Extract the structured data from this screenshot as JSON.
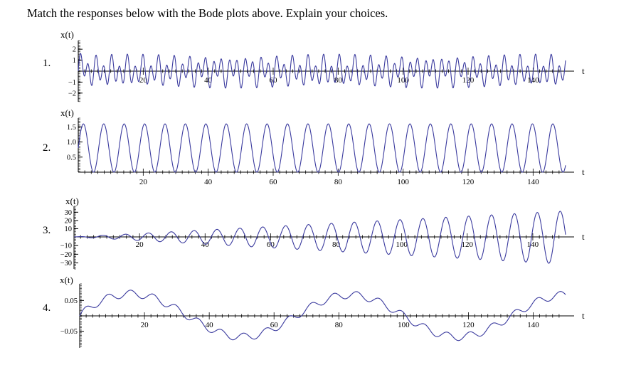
{
  "prompt": "Match the responses below with the Bode plots above. Explain your choices.",
  "colors": {
    "curve": "#3a3a9e",
    "axis": "#000000"
  },
  "chart_data": [
    {
      "type": "line",
      "number": "1.",
      "ylabel": "x(t)",
      "xlabel": "t",
      "xlim": [
        0,
        150
      ],
      "ylim": [
        -2.4,
        2.4
      ],
      "xticks": [
        20,
        40,
        60,
        80,
        100,
        120,
        140
      ],
      "yticks": [
        2,
        1,
        -1,
        -2
      ],
      "series": [
        {
          "description_components": [
            {
              "kind": "sine",
              "amplitude": 1.0,
              "angular_frequency": 2.6
            },
            {
              "kind": "sine",
              "amplitude": 0.55,
              "angular_frequency": 1.35
            },
            {
              "kind": "decaying_sine",
              "amplitude": 0.6,
              "angular_frequency": 0.7,
              "decay_rate": 0.5
            }
          ]
        }
      ]
    },
    {
      "type": "line",
      "number": "2.",
      "ylabel": "x(t)",
      "xlabel": "t",
      "xlim": [
        0,
        150
      ],
      "ylim": [
        0,
        1.65
      ],
      "xticks": [
        20,
        40,
        60,
        80,
        100,
        120,
        140
      ],
      "yticks": [
        1.5,
        1.0,
        0.5
      ],
      "series": [
        {
          "description_components": [
            {
              "kind": "offset",
              "value": 0.8
            },
            {
              "kind": "sine",
              "amplitude": 0.8,
              "angular_frequency": 1.0
            }
          ]
        }
      ]
    },
    {
      "type": "line",
      "number": "3.",
      "ylabel": "x(t)",
      "xlabel": "t",
      "xlim": [
        0,
        150
      ],
      "ylim": [
        -32,
        32
      ],
      "xticks": [
        20,
        40,
        60,
        80,
        100,
        120,
        140
      ],
      "yticks": [
        30,
        20,
        10,
        -10,
        -20,
        -30
      ],
      "series": [
        {
          "description_components": [
            {
              "kind": "linearly_growing_sine",
              "growth_per_unit_t": 0.21,
              "angular_frequency": 0.9
            }
          ]
        }
      ]
    },
    {
      "type": "line",
      "number": "4.",
      "ylabel": "x(t)",
      "xlabel": "t",
      "xlim": [
        0,
        150
      ],
      "ylim": [
        -0.09,
        0.09
      ],
      "xticks": [
        20,
        40,
        60,
        80,
        100,
        120,
        140
      ],
      "yticks": [
        0.05,
        -0.05
      ],
      "series": [
        {
          "description_components": [
            {
              "kind": "sine",
              "amplitude": 0.068,
              "angular_frequency": 0.0942
            },
            {
              "kind": "sine",
              "amplitude": 0.012,
              "angular_frequency": 0.9
            },
            {
              "kind": "decaying_sine",
              "amplitude": 0.04,
              "angular_frequency": 0.0942,
              "decay_rate": 0.15
            }
          ]
        }
      ]
    }
  ]
}
